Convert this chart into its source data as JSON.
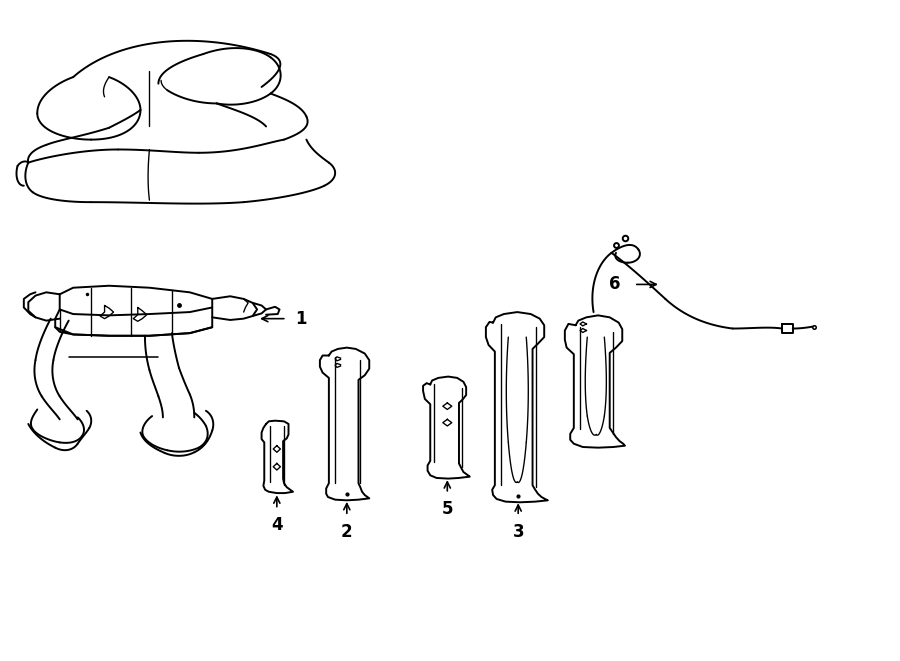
{
  "bg_color": "#ffffff",
  "line_color": "#000000",
  "lw": 1.4,
  "fig_width": 9.0,
  "fig_height": 6.61,
  "dpi": 100
}
